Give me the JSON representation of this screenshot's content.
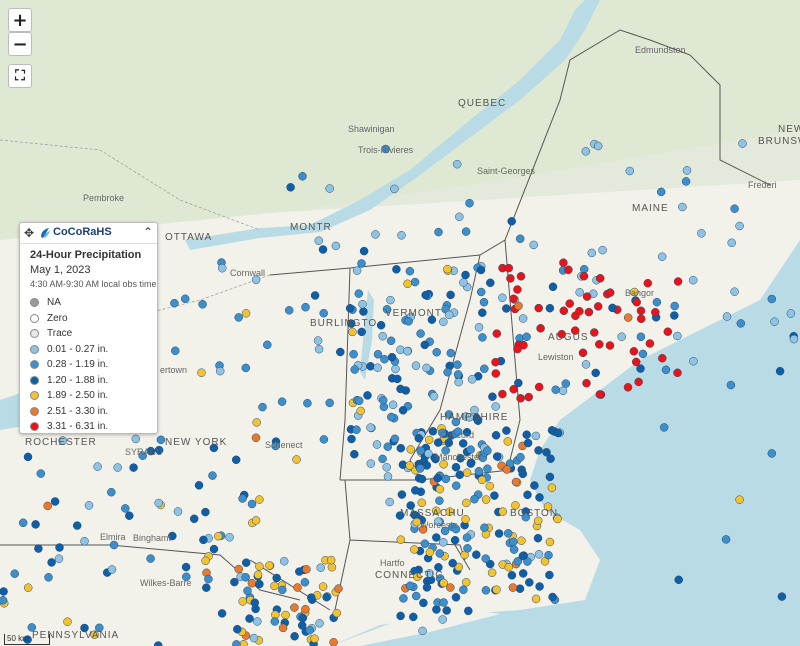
{
  "controls": {
    "zoom_in": "+",
    "zoom_out": "−",
    "fullscreen": "⛶"
  },
  "places": {
    "quebec": "QUEBEC",
    "shawinigan": "Shawinigan",
    "trois_rivieres": "Trois-Rivieres",
    "saint_georges": "Saint-Georges",
    "edmundston": "Edmundston",
    "maine": "MAINE",
    "new_brunsw_1": "NEW",
    "new_brunsw_2": "BRUNSW",
    "fredericton": "Frederi",
    "pembroke": "Pembroke",
    "montreal": "MONTR",
    "ottawa": "OTTAWA",
    "cornwall": "Cornwall",
    "burlington": "BURLINGTO",
    "vermont": "VERMONT",
    "bangor": "Bangor",
    "augusta": "AUGUS",
    "lewiston": "Lewiston",
    "hampshire": "HAMPSHIRE",
    "concord": "Concord",
    "manchester": "Manchester",
    "rochester": "ROCHESTER",
    "new_york": "NEW YORK",
    "syracuse": "SYRACU",
    "schenectady": "Schenect",
    "massachusetts": "MASSACHU",
    "worcester": "Worceste",
    "boston": "BOSTON",
    "binghamton": "Binghamt",
    "elmira": "Elmira",
    "hartford": "Hartfo",
    "connecticut": "CONNECTIC",
    "wilkes_barre": "Wilkes-Barre",
    "pennsylvania": "PENNSYLVANIA",
    "watertown": "ertown"
  },
  "legend": {
    "brand": "CoCoRaHS",
    "move_icon": "✥",
    "collapse_icon": "⌃",
    "title": "24-Hour Precipitation",
    "date": "May 1, 2023",
    "obs_time": "4:30 AM-9:30 AM local obs time",
    "items": [
      {
        "label": "NA",
        "color": "#9a9a9a"
      },
      {
        "label": "Zero",
        "color": "#ffffff"
      },
      {
        "label": "Trace",
        "color": "#e8e8e8"
      },
      {
        "label": "0.01 - 0.27 in.",
        "color": "#8fc3e3"
      },
      {
        "label": "0.28 - 1.19 in.",
        "color": "#3d8fcc"
      },
      {
        "label": "1.20 - 1.88 in.",
        "color": "#0f5ea8"
      },
      {
        "label": "1.89 - 2.50 in.",
        "color": "#f2c230"
      },
      {
        "label": "2.51 - 3.30 in.",
        "color": "#e8792d"
      },
      {
        "label": "3.31 - 6.31 in.",
        "color": "#e8141a"
      }
    ]
  },
  "scale": {
    "label": "50 km"
  },
  "colors": {
    "land": "#f5f3ea",
    "water": "#b9dbe6",
    "forest": "#dfe8d2",
    "border": "#555555"
  }
}
